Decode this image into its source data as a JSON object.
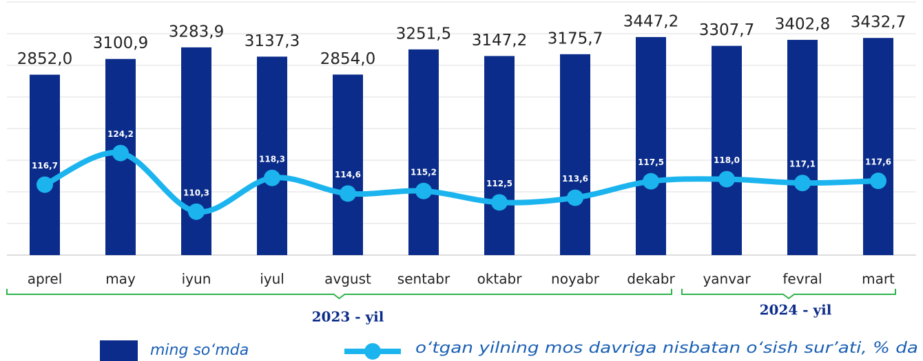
{
  "chart_data": {
    "type": "bar_line",
    "categories": [
      "aprel",
      "may",
      "iyun",
      "iyul",
      "avgust",
      "sentabr",
      "oktabr",
      "noyabr",
      "dekabr",
      "yanvar",
      "fevral",
      "mart"
    ],
    "series": [
      {
        "name": "ming so‘mda",
        "color": "#0b2c8a",
        "type": "bar",
        "values": [
          2852.0,
          3100.9,
          3283.9,
          3137.3,
          2854.0,
          3251.5,
          3147.2,
          3175.7,
          3447.2,
          3307.7,
          3402.8,
          3432.7
        ],
        "value_labels": [
          "2852,0",
          "3100,9",
          "3283,9",
          "3137,3",
          "2854,0",
          "3251,5",
          "3147,2",
          "3175,7",
          "3447,2",
          "3307,7",
          "3402,8",
          "3432,7"
        ]
      },
      {
        "name": "o‘tgan yilning mos davriga nisbatan o‘sish sur’ati, % da",
        "color": "#1cb4ee",
        "type": "line",
        "axis": "y2",
        "values": [
          116.7,
          124.2,
          110.3,
          118.3,
          114.6,
          115.2,
          112.5,
          113.6,
          117.5,
          118.0,
          117.1,
          117.6
        ],
        "value_labels": [
          "116,7",
          "124,2",
          "110,3",
          "118,3",
          "114,6",
          "115,2",
          "112,5",
          "113,6",
          "117,5",
          "118,0",
          "117,1",
          "117,6"
        ]
      }
    ],
    "group_labels": [
      "2023 - yil",
      "2024 - yil"
    ],
    "ylim": [
      0,
      4000
    ],
    "yticks": [
      0,
      500,
      1000,
      1500,
      2000,
      2500,
      3000,
      3500,
      4000
    ],
    "y2lim": [
      100,
      160
    ],
    "grid": true
  }
}
